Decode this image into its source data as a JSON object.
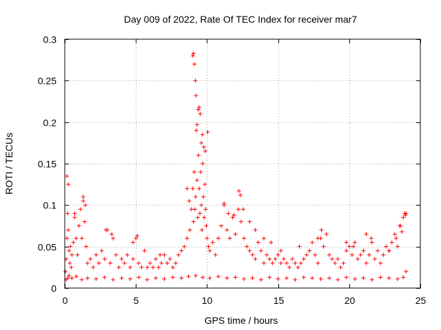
{
  "chart_data": {
    "type": "scatter",
    "title": "Day 009 of 2022, Rate Of TEC Index for receiver mar7",
    "xlabel": "GPS time / hours",
    "ylabel": "ROTI / TECUs",
    "xlim": [
      0,
      25
    ],
    "ylim": [
      0,
      0.3
    ],
    "xticks": [
      0,
      5,
      10,
      15,
      20,
      25
    ],
    "xtick_labels": [
      "0",
      "5",
      "10",
      "15",
      "20",
      "25"
    ],
    "yticks": [
      0,
      0.05,
      0.1,
      0.15,
      0.2,
      0.25,
      0.3
    ],
    "ytick_labels": [
      "0",
      "0.05",
      "0.1",
      "0.15",
      "0.2",
      "0.25",
      "0.3"
    ],
    "grid": true,
    "marker": "+",
    "series_color": "#ff0000",
    "series": [
      {
        "name": "ROTI",
        "x": [
          0.05,
          0.1,
          0.15,
          0.2,
          0.25,
          0.3,
          0.35,
          0.4,
          0.45,
          0.5,
          0.6,
          0.7,
          0.8,
          0.9,
          1.0,
          1.1,
          1.2,
          1.3,
          1.4,
          1.5,
          1.6,
          1.8,
          2.0,
          2.2,
          2.4,
          2.6,
          2.8,
          3.0,
          3.2,
          3.4,
          3.6,
          3.8,
          4.0,
          4.2,
          4.4,
          4.6,
          4.8,
          5.0,
          5.2,
          5.4,
          5.6,
          5.8,
          6.0,
          6.2,
          6.4,
          6.6,
          6.8,
          7.0,
          7.2,
          7.4,
          7.6,
          7.8,
          8.0,
          8.2,
          8.4,
          8.6,
          8.8,
          8.9,
          9.0,
          9.05,
          9.1,
          9.15,
          9.2,
          9.25,
          9.3,
          9.35,
          9.4,
          9.45,
          9.5,
          9.55,
          9.6,
          9.65,
          9.7,
          9.75,
          9.8,
          9.85,
          9.9,
          9.95,
          10.0,
          10.1,
          10.2,
          10.4,
          10.6,
          10.8,
          11.0,
          11.2,
          11.4,
          11.6,
          11.8,
          12.0,
          12.2,
          12.4,
          12.6,
          12.8,
          13.0,
          13.2,
          13.4,
          13.6,
          13.8,
          14.0,
          14.2,
          14.4,
          14.6,
          14.8,
          15.0,
          15.2,
          15.4,
          15.6,
          15.8,
          16.0,
          16.2,
          16.4,
          16.6,
          16.8,
          17.0,
          17.2,
          17.4,
          17.6,
          17.8,
          18.0,
          18.2,
          18.4,
          18.6,
          18.8,
          19.0,
          19.2,
          19.4,
          19.6,
          19.8,
          20.0,
          20.2,
          20.4,
          20.6,
          20.8,
          21.0,
          21.2,
          21.4,
          21.6,
          21.8,
          22.0,
          22.2,
          22.4,
          22.6,
          22.8,
          23.0,
          23.2,
          23.4,
          23.6,
          23.8,
          23.9,
          24.0,
          0.1,
          0.2,
          0.3,
          0.5,
          0.8,
          1.2,
          1.6,
          2.2,
          2.8,
          3.4,
          4.0,
          4.6,
          5.2,
          5.8,
          6.4,
          7.0,
          7.6,
          8.2,
          8.7,
          9.2,
          9.7,
          10.2,
          10.8,
          11.4,
          12.0,
          12.6,
          13.2,
          13.8,
          14.4,
          15.0,
          15.6,
          16.2,
          16.8,
          17.4,
          18.0,
          18.6,
          19.2,
          19.8,
          20.4,
          21.0,
          21.6,
          22.2,
          22.8,
          23.4,
          23.8,
          0.15,
          0.25,
          0.7,
          1.3,
          1.45,
          2.9,
          3.3,
          4.8,
          5.1,
          6.7,
          8.6,
          8.75,
          9.0,
          9.05,
          9.12,
          9.18,
          9.22,
          9.3,
          9.38,
          9.45,
          9.52,
          9.6,
          9.68,
          9.78,
          9.88,
          10.05,
          11.2,
          11.5,
          11.9,
          12.25,
          12.35,
          12.55,
          13.0,
          13.4,
          14.0,
          14.5,
          15.2,
          16.5,
          17.8,
          18.05,
          19.8,
          20.3,
          21.2,
          21.55,
          22.8,
          23.3,
          23.55,
          23.7,
          23.95,
          24.0
        ],
        "y": [
          0.02,
          0.035,
          0.06,
          0.09,
          0.07,
          0.045,
          0.03,
          0.05,
          0.025,
          0.04,
          0.055,
          0.085,
          0.06,
          0.04,
          0.075,
          0.095,
          0.06,
          0.105,
          0.08,
          0.05,
          0.03,
          0.035,
          0.025,
          0.04,
          0.03,
          0.045,
          0.035,
          0.07,
          0.03,
          0.06,
          0.04,
          0.025,
          0.035,
          0.03,
          0.04,
          0.025,
          0.035,
          0.06,
          0.03,
          0.025,
          0.045,
          0.025,
          0.03,
          0.025,
          0.035,
          0.025,
          0.03,
          0.04,
          0.03,
          0.035,
          0.025,
          0.03,
          0.04,
          0.045,
          0.05,
          0.06,
          0.07,
          0.095,
          0.12,
          0.08,
          0.14,
          0.095,
          0.11,
          0.19,
          0.13,
          0.085,
          0.16,
          0.12,
          0.09,
          0.14,
          0.1,
          0.07,
          0.15,
          0.11,
          0.085,
          0.125,
          0.095,
          0.075,
          0.06,
          0.05,
          0.045,
          0.055,
          0.04,
          0.06,
          0.075,
          0.1,
          0.07,
          0.06,
          0.085,
          0.065,
          0.095,
          0.08,
          0.06,
          0.05,
          0.045,
          0.04,
          0.035,
          0.055,
          0.045,
          0.03,
          0.04,
          0.035,
          0.03,
          0.035,
          0.04,
          0.03,
          0.035,
          0.03,
          0.025,
          0.035,
          0.03,
          0.025,
          0.03,
          0.035,
          0.04,
          0.045,
          0.055,
          0.04,
          0.03,
          0.06,
          0.05,
          0.065,
          0.04,
          0.035,
          0.03,
          0.035,
          0.025,
          0.03,
          0.045,
          0.05,
          0.04,
          0.055,
          0.035,
          0.04,
          0.045,
          0.03,
          0.04,
          0.055,
          0.035,
          0.045,
          0.03,
          0.04,
          0.05,
          0.045,
          0.055,
          0.065,
          0.05,
          0.075,
          0.085,
          0.09,
          0.02,
          0.01,
          0.012,
          0.015,
          0.012,
          0.014,
          0.01,
          0.012,
          0.011,
          0.013,
          0.01,
          0.012,
          0.011,
          0.013,
          0.01,
          0.012,
          0.011,
          0.013,
          0.012,
          0.014,
          0.015,
          0.013,
          0.012,
          0.014,
          0.012,
          0.013,
          0.011,
          0.012,
          0.01,
          0.013,
          0.011,
          0.012,
          0.01,
          0.013,
          0.012,
          0.011,
          0.012,
          0.01,
          0.013,
          0.011,
          0.012,
          0.01,
          0.013,
          0.012,
          0.011,
          0.013,
          0.135,
          0.125,
          0.09,
          0.11,
          0.1,
          0.07,
          0.065,
          0.055,
          0.063,
          0.04,
          0.12,
          0.105,
          0.28,
          0.283,
          0.27,
          0.25,
          0.232,
          0.197,
          0.215,
          0.218,
          0.21,
          0.175,
          0.185,
          0.17,
          0.165,
          0.188,
          0.102,
          0.09,
          0.088,
          0.117,
          0.112,
          0.095,
          0.08,
          0.07,
          0.06,
          0.055,
          0.045,
          0.05,
          0.06,
          0.07,
          0.055,
          0.05,
          0.065,
          0.06,
          0.045,
          0.06,
          0.075,
          0.068,
          0.088,
          0.09
        ]
      }
    ]
  }
}
